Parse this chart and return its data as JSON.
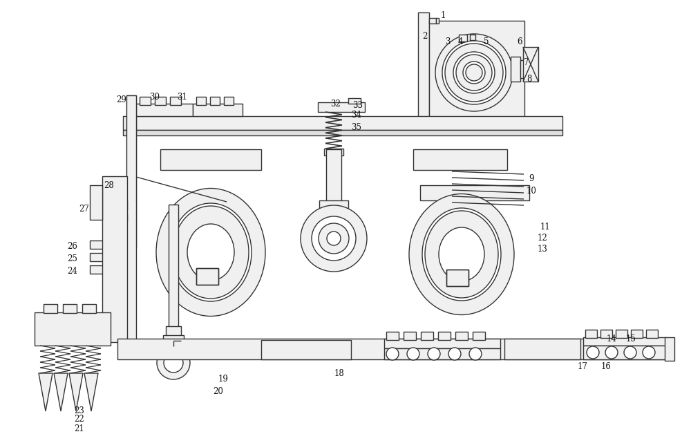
{
  "bg_color": "#ffffff",
  "line_color": "#333333",
  "fill_light": "#f0f0f0",
  "fill_mid": "#e0e0e0",
  "lw": 1.0,
  "fig_w": 10.0,
  "fig_h": 6.41
}
